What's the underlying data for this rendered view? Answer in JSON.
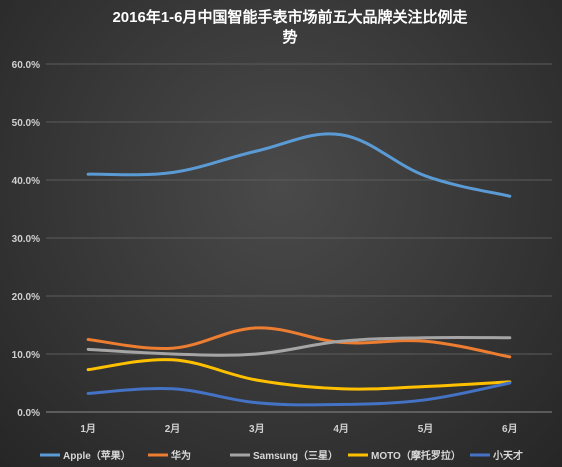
{
  "chart_data": {
    "type": "line",
    "title_line1": "2016年1-6月中国智能手表市场前五大品牌关注比例走",
    "title_line2": "势",
    "categories": [
      "1月",
      "2月",
      "3月",
      "4月",
      "5月",
      "6月"
    ],
    "ylim": [
      0,
      60
    ],
    "yticks": [
      "0.0%",
      "10.0%",
      "20.0%",
      "30.0%",
      "40.0%",
      "50.0%",
      "60.0%"
    ],
    "grid": true,
    "legend_position": "bottom",
    "series": [
      {
        "name": "Apple（苹果）",
        "color": "#5b9bd5",
        "values": [
          41.0,
          41.3,
          45.0,
          47.8,
          40.7,
          37.2
        ]
      },
      {
        "name": "华为",
        "color": "#ed7d31",
        "values": [
          12.5,
          11.0,
          14.5,
          12.0,
          12.2,
          9.5
        ]
      },
      {
        "name": "Samsung（三星）",
        "color": "#a5a5a5",
        "values": [
          10.8,
          10.0,
          10.0,
          12.2,
          12.8,
          12.8
        ]
      },
      {
        "name": "MOTO（摩托罗拉）",
        "color": "#ffc000",
        "values": [
          7.3,
          9.0,
          5.5,
          4.0,
          4.4,
          5.2
        ]
      },
      {
        "name": "小天才",
        "color": "#4472c4",
        "values": [
          3.2,
          4.0,
          1.6,
          1.3,
          2.1,
          5.0
        ]
      }
    ]
  }
}
